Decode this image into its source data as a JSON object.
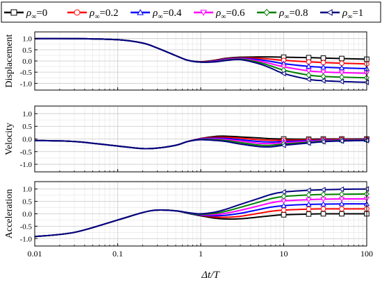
{
  "chart_data": {
    "type": "line",
    "xlabel": "Δt/T",
    "x_scale": "log",
    "xlim": [
      0.01,
      100
    ],
    "x_ticks": [
      {
        "value": 0.01,
        "label": "0.01"
      },
      {
        "value": 0.1,
        "label": "0.1"
      },
      {
        "value": 1,
        "label": "1"
      },
      {
        "value": 10,
        "label": "10"
      },
      {
        "value": 100,
        "label": "100"
      }
    ],
    "y_ticks": [
      "-1.0",
      "-0.5",
      "0.0",
      "0.5",
      "1.0"
    ],
    "grid": true,
    "legend": {
      "placement": "top",
      "prefix": "ρ",
      "subscript": "∞",
      "entries": [
        {
          "label": "=0",
          "color": "#000000",
          "marker": "square"
        },
        {
          "label": "=0.2",
          "color": "#ff0000",
          "marker": "circle"
        },
        {
          "label": "=0.4",
          "color": "#0000ff",
          "marker": "triangle-up"
        },
        {
          "label": "=0.6",
          "color": "#ff00ff",
          "marker": "triangle-down"
        },
        {
          "label": "=0.8",
          "color": "#008000",
          "marker": "diamond"
        },
        {
          "label": "=1",
          "color": "#000080",
          "marker": "triangle-left"
        }
      ]
    },
    "x": [
      0.01,
      0.03,
      0.1,
      0.2,
      0.3,
      0.5,
      0.7,
      1,
      1.5,
      2,
      3,
      5,
      7,
      10,
      20,
      30,
      50,
      100
    ],
    "panels": [
      {
        "ylabel": "Displacement",
        "ylim": [
          -1.3,
          1.3
        ],
        "series": [
          {
            "values": [
              1.0,
              1.0,
              0.95,
              0.8,
              0.58,
              0.24,
              0.03,
              -0.03,
              0.04,
              0.12,
              0.17,
              0.18,
              0.18,
              0.17,
              0.15,
              0.13,
              0.11,
              0.08
            ]
          },
          {
            "values": [
              1.0,
              1.0,
              0.95,
              0.8,
              0.58,
              0.24,
              0.03,
              -0.04,
              0.02,
              0.1,
              0.14,
              0.12,
              0.08,
              0.03,
              -0.04,
              -0.07,
              -0.1,
              -0.13
            ]
          },
          {
            "values": [
              1.0,
              1.0,
              0.95,
              0.8,
              0.58,
              0.24,
              0.03,
              -0.05,
              0.0,
              0.08,
              0.12,
              0.06,
              -0.02,
              -0.12,
              -0.24,
              -0.28,
              -0.31,
              -0.34
            ]
          },
          {
            "values": [
              1.0,
              1.0,
              0.95,
              0.8,
              0.58,
              0.24,
              0.03,
              -0.05,
              -0.02,
              0.06,
              0.1,
              0.0,
              -0.12,
              -0.26,
              -0.44,
              -0.49,
              -0.52,
              -0.55
            ]
          },
          {
            "values": [
              1.0,
              1.0,
              0.95,
              0.8,
              0.58,
              0.24,
              0.03,
              -0.05,
              -0.03,
              0.04,
              0.08,
              -0.06,
              -0.22,
              -0.41,
              -0.63,
              -0.69,
              -0.72,
              -0.75
            ]
          },
          {
            "values": [
              1.0,
              1.0,
              0.95,
              0.8,
              0.58,
              0.24,
              0.03,
              -0.05,
              -0.04,
              0.02,
              0.06,
              -0.12,
              -0.32,
              -0.56,
              -0.82,
              -0.88,
              -0.92,
              -0.95
            ]
          }
        ]
      },
      {
        "ylabel": "Velocity",
        "ylim": [
          -1.3,
          1.3
        ],
        "series": [
          {
            "values": [
              -0.06,
              -0.1,
              -0.28,
              -0.38,
              -0.36,
              -0.25,
              -0.1,
              0.02,
              0.1,
              0.11,
              0.08,
              0.04,
              0.01,
              0.0,
              -0.01,
              0.0,
              0.0,
              0.0
            ]
          },
          {
            "values": [
              -0.06,
              -0.1,
              -0.28,
              -0.38,
              -0.36,
              -0.25,
              -0.1,
              0.01,
              0.06,
              0.06,
              0.03,
              -0.03,
              -0.05,
              -0.05,
              -0.04,
              -0.03,
              -0.02,
              -0.02
            ]
          },
          {
            "values": [
              -0.06,
              -0.1,
              -0.28,
              -0.38,
              -0.36,
              -0.25,
              -0.1,
              0.0,
              0.03,
              0.02,
              -0.03,
              -0.1,
              -0.12,
              -0.1,
              -0.07,
              -0.05,
              -0.04,
              -0.03
            ]
          },
          {
            "values": [
              -0.06,
              -0.1,
              -0.28,
              -0.38,
              -0.36,
              -0.25,
              -0.1,
              -0.01,
              0.0,
              -0.02,
              -0.08,
              -0.17,
              -0.18,
              -0.15,
              -0.1,
              -0.07,
              -0.05,
              -0.04
            ]
          },
          {
            "values": [
              -0.06,
              -0.1,
              -0.28,
              -0.38,
              -0.36,
              -0.25,
              -0.1,
              -0.02,
              -0.03,
              -0.06,
              -0.14,
              -0.24,
              -0.25,
              -0.2,
              -0.13,
              -0.09,
              -0.06,
              -0.05
            ]
          },
          {
            "values": [
              -0.06,
              -0.1,
              -0.28,
              -0.38,
              -0.36,
              -0.25,
              -0.1,
              -0.03,
              -0.06,
              -0.1,
              -0.2,
              -0.3,
              -0.31,
              -0.25,
              -0.16,
              -0.11,
              -0.08,
              -0.06
            ]
          }
        ]
      },
      {
        "ylabel": "Acceleration",
        "ylim": [
          -1.3,
          1.3
        ],
        "series": [
          {
            "values": [
              -0.92,
              -0.75,
              -0.25,
              0.05,
              0.15,
              0.12,
              0.02,
              -0.08,
              -0.18,
              -0.21,
              -0.2,
              -0.13,
              -0.08,
              -0.04,
              -0.01,
              0.0,
              0.0,
              0.0
            ]
          },
          {
            "values": [
              -0.92,
              -0.75,
              -0.25,
              0.05,
              0.15,
              0.12,
              0.03,
              -0.06,
              -0.13,
              -0.14,
              -0.1,
              0.02,
              0.1,
              0.15,
              0.19,
              0.2,
              0.2,
              0.2
            ]
          },
          {
            "values": [
              -0.92,
              -0.75,
              -0.25,
              0.05,
              0.15,
              0.12,
              0.03,
              -0.05,
              -0.08,
              -0.06,
              0.02,
              0.17,
              0.27,
              0.33,
              0.38,
              0.39,
              0.4,
              0.4
            ]
          },
          {
            "values": [
              -0.92,
              -0.75,
              -0.25,
              0.05,
              0.15,
              0.12,
              0.04,
              -0.03,
              -0.03,
              0.02,
              0.14,
              0.32,
              0.44,
              0.52,
              0.57,
              0.59,
              0.6,
              0.6
            ]
          },
          {
            "values": [
              -0.92,
              -0.75,
              -0.25,
              0.05,
              0.15,
              0.12,
              0.04,
              -0.02,
              0.02,
              0.1,
              0.26,
              0.47,
              0.61,
              0.7,
              0.76,
              0.78,
              0.79,
              0.8
            ]
          },
          {
            "values": [
              -0.92,
              -0.75,
              -0.25,
              0.05,
              0.15,
              0.12,
              0.05,
              0.0,
              0.07,
              0.18,
              0.38,
              0.62,
              0.78,
              0.88,
              0.95,
              0.97,
              0.99,
              1.0
            ]
          }
        ]
      }
    ]
  }
}
